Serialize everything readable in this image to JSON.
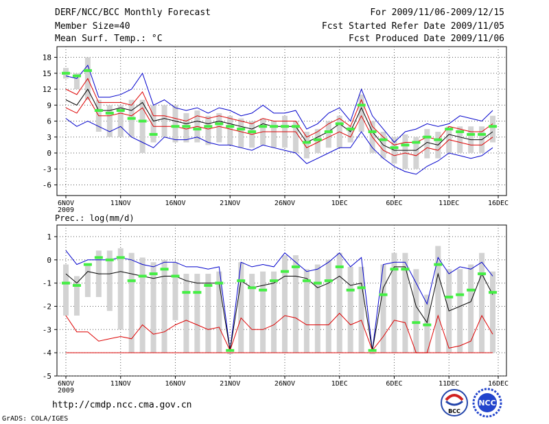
{
  "header": {
    "title": "DERF/NCC/BCC Monthly Forecast",
    "member_size": "Member Size=40",
    "variable": "Mean Surf. Temp.: °C",
    "forecast_period": "For 2009/11/06-2009/12/15",
    "fcst_started": "Fcst Started Refer Date 2009/11/05",
    "fcst_produced": "Fcst Produced Date 2009/11/06"
  },
  "footer": {
    "url": "http://cmdp.ncc.cma.gov.cn",
    "grads": "GrADS: COLA/IGES",
    "logo_bcc": "BCC",
    "logo_ncc": "NCC"
  },
  "colors": {
    "max": "#0000cc",
    "mean": "#000000",
    "min": "#dd0000",
    "ensemble_box": "#d3d3d3",
    "observed": "#44ee44",
    "grid": "#555555"
  },
  "chart_data": [
    {
      "type": "line",
      "name": "temperature",
      "title": "Mean Surf. Temp.: °C",
      "ylim": [
        -8,
        20
      ],
      "yticks": [
        -6,
        -3,
        0,
        3,
        6,
        9,
        12,
        15,
        18
      ],
      "x_ticks": [
        {
          "day": 0,
          "label": "6NOV",
          "sublabel": "2009"
        },
        {
          "day": 5,
          "label": "11NOV"
        },
        {
          "day": 10,
          "label": "16NOV"
        },
        {
          "day": 15,
          "label": "21NOV"
        },
        {
          "day": 20,
          "label": "26NOV"
        },
        {
          "day": 25,
          "label": "1DEC"
        },
        {
          "day": 30,
          "label": "6DEC"
        },
        {
          "day": 35,
          "label": "11DEC"
        },
        {
          "day": 39.5,
          "label": "16DEC"
        }
      ],
      "days": [
        0,
        1,
        2,
        3,
        4,
        5,
        6,
        7,
        8,
        9,
        10,
        11,
        12,
        13,
        14,
        15,
        16,
        17,
        18,
        19,
        20,
        21,
        22,
        23,
        24,
        25,
        26,
        27,
        28,
        29,
        30,
        31,
        32,
        33,
        34,
        35,
        36,
        37,
        38,
        39
      ],
      "max": [
        14.5,
        14,
        16.5,
        10.5,
        10.5,
        11,
        12,
        15,
        9,
        10,
        8.5,
        8,
        8.5,
        7.5,
        8.5,
        8,
        7,
        7.5,
        9,
        7.5,
        7.5,
        8,
        4.5,
        5.5,
        7.5,
        8.5,
        6,
        12,
        7,
        4.5,
        2,
        4,
        4.5,
        5.5,
        5,
        5.5,
        7,
        6.5,
        6,
        8
      ],
      "mean_upper": [
        12,
        11,
        14,
        9.5,
        9.5,
        9.5,
        9,
        11.5,
        7,
        7,
        6.5,
        6,
        7,
        6.5,
        7,
        6.5,
        6,
        5.5,
        6.5,
        6,
        6,
        6,
        3,
        4,
        5.5,
        6.5,
        5,
        10,
        5,
        3,
        1.5,
        2,
        2,
        3,
        2.5,
        5,
        4.5,
        4,
        4,
        5.5
      ],
      "mean": [
        10,
        9,
        12,
        8,
        8,
        8.5,
        8,
        9.5,
        6,
        6.5,
        6,
        5.5,
        6,
        5.5,
        6,
        5.5,
        5,
        4.5,
        5.5,
        5,
        5,
        5,
        2,
        3,
        4,
        5.5,
        4,
        8.5,
        4,
        1.5,
        0.5,
        0.5,
        0.5,
        2,
        1.5,
        3.5,
        3,
        2.5,
        2.5,
        4
      ],
      "min": [
        8.5,
        7.5,
        10.5,
        7,
        7,
        7.5,
        7,
        8.5,
        5,
        5,
        5,
        4.5,
        5,
        4.5,
        5,
        4.5,
        4,
        3.5,
        4,
        4,
        4,
        4,
        1,
        2,
        3,
        4,
        3,
        7,
        3,
        0.5,
        -0.5,
        0,
        -0.5,
        1,
        0.5,
        2.5,
        2,
        1.5,
        1.5,
        3
      ],
      "lower": [
        6.5,
        5,
        6,
        5,
        4,
        5,
        3,
        2,
        1,
        3,
        2.5,
        2.5,
        3,
        2,
        1.5,
        1.5,
        1,
        0.5,
        1.5,
        1,
        0.5,
        0,
        -2,
        -1,
        0,
        1,
        1,
        4,
        1,
        -1,
        -2.5,
        -3.5,
        -4,
        -2.5,
        -1.5,
        0,
        -0.5,
        -1,
        -0.5,
        1
      ],
      "box_high": [
        16,
        15,
        18,
        10,
        9,
        9,
        10,
        10,
        9,
        9,
        9,
        7.5,
        8,
        7,
        7.5,
        7,
        6.5,
        6,
        6.5,
        6,
        7,
        6,
        4,
        4.5,
        6,
        7,
        5,
        11,
        6,
        4,
        3,
        3.5,
        3,
        4.5,
        4,
        5,
        5,
        5,
        5,
        7
      ],
      "box_low": [
        14,
        12,
        10,
        4,
        3,
        3,
        3,
        0,
        2,
        3,
        2,
        2,
        2,
        1.5,
        2,
        1.5,
        1,
        1,
        1.5,
        1,
        1,
        0,
        -1,
        0,
        1,
        1,
        2,
        4,
        0,
        -1,
        -2,
        -3,
        -3,
        -1,
        -1,
        0,
        0,
        0,
        0,
        2
      ],
      "observed": [
        15,
        14.5,
        15.5,
        8,
        7.5,
        8,
        6.5,
        6,
        3.5,
        null,
        5,
        5,
        4.5,
        5,
        5.5,
        5,
        4.5,
        4,
        5,
        5,
        5,
        5,
        2,
        2.5,
        4,
        5.5,
        4.5,
        9,
        4,
        2.5,
        1,
        1.5,
        2,
        3,
        2.5,
        4.5,
        4,
        3.5,
        3.5,
        5
      ]
    },
    {
      "type": "line",
      "name": "precipitation",
      "title": "Prec.: log(mm/d)",
      "ylim": [
        -5,
        1.5
      ],
      "yticks": [
        -5,
        -4,
        -3,
        -2,
        -1,
        0,
        1
      ],
      "x_ticks": [
        {
          "day": 0,
          "label": "6NOV",
          "sublabel": "2009"
        },
        {
          "day": 5,
          "label": "11NOV"
        },
        {
          "day": 10,
          "label": "16NOV"
        },
        {
          "day": 15,
          "label": "21NOV"
        },
        {
          "day": 20,
          "label": "26NOV"
        },
        {
          "day": 25,
          "label": "1DEC"
        },
        {
          "day": 30,
          "label": "6DEC"
        },
        {
          "day": 35,
          "label": "11DEC"
        },
        {
          "day": 39.5,
          "label": "16DEC"
        }
      ],
      "days": [
        0,
        1,
        2,
        3,
        4,
        5,
        6,
        7,
        8,
        9,
        10,
        11,
        12,
        13,
        14,
        15,
        16,
        17,
        18,
        19,
        20,
        21,
        22,
        23,
        24,
        25,
        26,
        27,
        28,
        29,
        30,
        31,
        32,
        33,
        34,
        35,
        36,
        37,
        38,
        39
      ],
      "max": [
        0.4,
        -0.2,
        0,
        0,
        0,
        0.1,
        0,
        -0.2,
        -0.3,
        -0.1,
        -0.1,
        -0.3,
        -0.3,
        -0.4,
        -0.3,
        -3.9,
        -0.1,
        -0.3,
        -0.2,
        -0.3,
        0.3,
        -0.1,
        -0.5,
        -0.4,
        -0.1,
        0.3,
        -0.3,
        0.1,
        -3.9,
        -0.2,
        -0.1,
        -0.1,
        -1,
        -1.9,
        0.1,
        -0.6,
        -0.3,
        -0.4,
        -0.1,
        -0.7
      ],
      "mean": [
        -0.6,
        -1,
        -0.5,
        -0.6,
        -0.6,
        -0.5,
        -0.6,
        -0.7,
        -0.8,
        -0.7,
        -0.7,
        -0.9,
        -1,
        -1,
        -1,
        -3.9,
        -0.9,
        -1.2,
        -1.1,
        -1,
        -0.7,
        -0.7,
        -0.8,
        -1.2,
        -1,
        -0.7,
        -1.1,
        -1,
        -3.9,
        -1.2,
        -0.3,
        -0.3,
        -2,
        -2.7,
        -0.6,
        -2.2,
        -2,
        -1.8,
        -0.6,
        -1.5
      ],
      "min": [
        -2.4,
        -3.1,
        -3.1,
        -3.5,
        -3.4,
        -3.3,
        -3.4,
        -2.8,
        -3.2,
        -3.1,
        -2.8,
        -2.6,
        -2.8,
        -3,
        -2.9,
        -3.9,
        -2.5,
        -3,
        -3,
        -2.8,
        -2.4,
        -2.5,
        -2.8,
        -2.8,
        -2.8,
        -2.3,
        -2.8,
        -2.6,
        -3.9,
        -3.3,
        -2.6,
        -2.7,
        -4,
        -4,
        -2.4,
        -3.8,
        -3.7,
        -3.5,
        -2.4,
        -3.2
      ],
      "floor": -4,
      "box_high": [
        -0.2,
        -0.7,
        -0.2,
        0.4,
        0.4,
        0.5,
        0.3,
        0.1,
        -0.1,
        0,
        -0.1,
        -0.6,
        -0.6,
        -0.6,
        -0.5,
        -4,
        -0.1,
        -0.6,
        -0.5,
        -0.5,
        0.2,
        0.2,
        -0.4,
        -0.2,
        0,
        0.3,
        -0.3,
        -0.3,
        -4,
        -0.2,
        0.3,
        0.3,
        -0.4,
        -1.5,
        0.6,
        -0.4,
        -0.4,
        -0.2,
        0.3,
        -0.5
      ],
      "box_low": [
        -2.4,
        -2.4,
        -1.6,
        -1.6,
        -2.2,
        -3,
        -4,
        -4,
        -4,
        -4,
        -2.6,
        -4,
        -4,
        -4,
        -4,
        -4,
        -4,
        -4,
        -4,
        -4,
        -4,
        -4,
        -4,
        -4,
        -4,
        -4,
        -4,
        -4,
        -4,
        -4,
        -4,
        -4,
        -4,
        -4,
        -4,
        -4,
        -4,
        -4,
        -4,
        -4
      ],
      "observed": [
        -1,
        -1.1,
        -0.2,
        0.1,
        0,
        0.1,
        -0.9,
        -0.7,
        -0.6,
        -0.4,
        -0.7,
        -1.4,
        -1.4,
        -1.1,
        -1,
        -3.9,
        -0.9,
        -1.2,
        -1.3,
        -0.9,
        -0.5,
        -0.3,
        -0.9,
        -1,
        -0.9,
        -0.3,
        -1.3,
        -1.2,
        -3.9,
        -1.5,
        -0.4,
        -0.4,
        -2.7,
        -2.8,
        -0.2,
        -1.6,
        -1.5,
        -1.3,
        -0.6,
        -1.4
      ]
    }
  ]
}
